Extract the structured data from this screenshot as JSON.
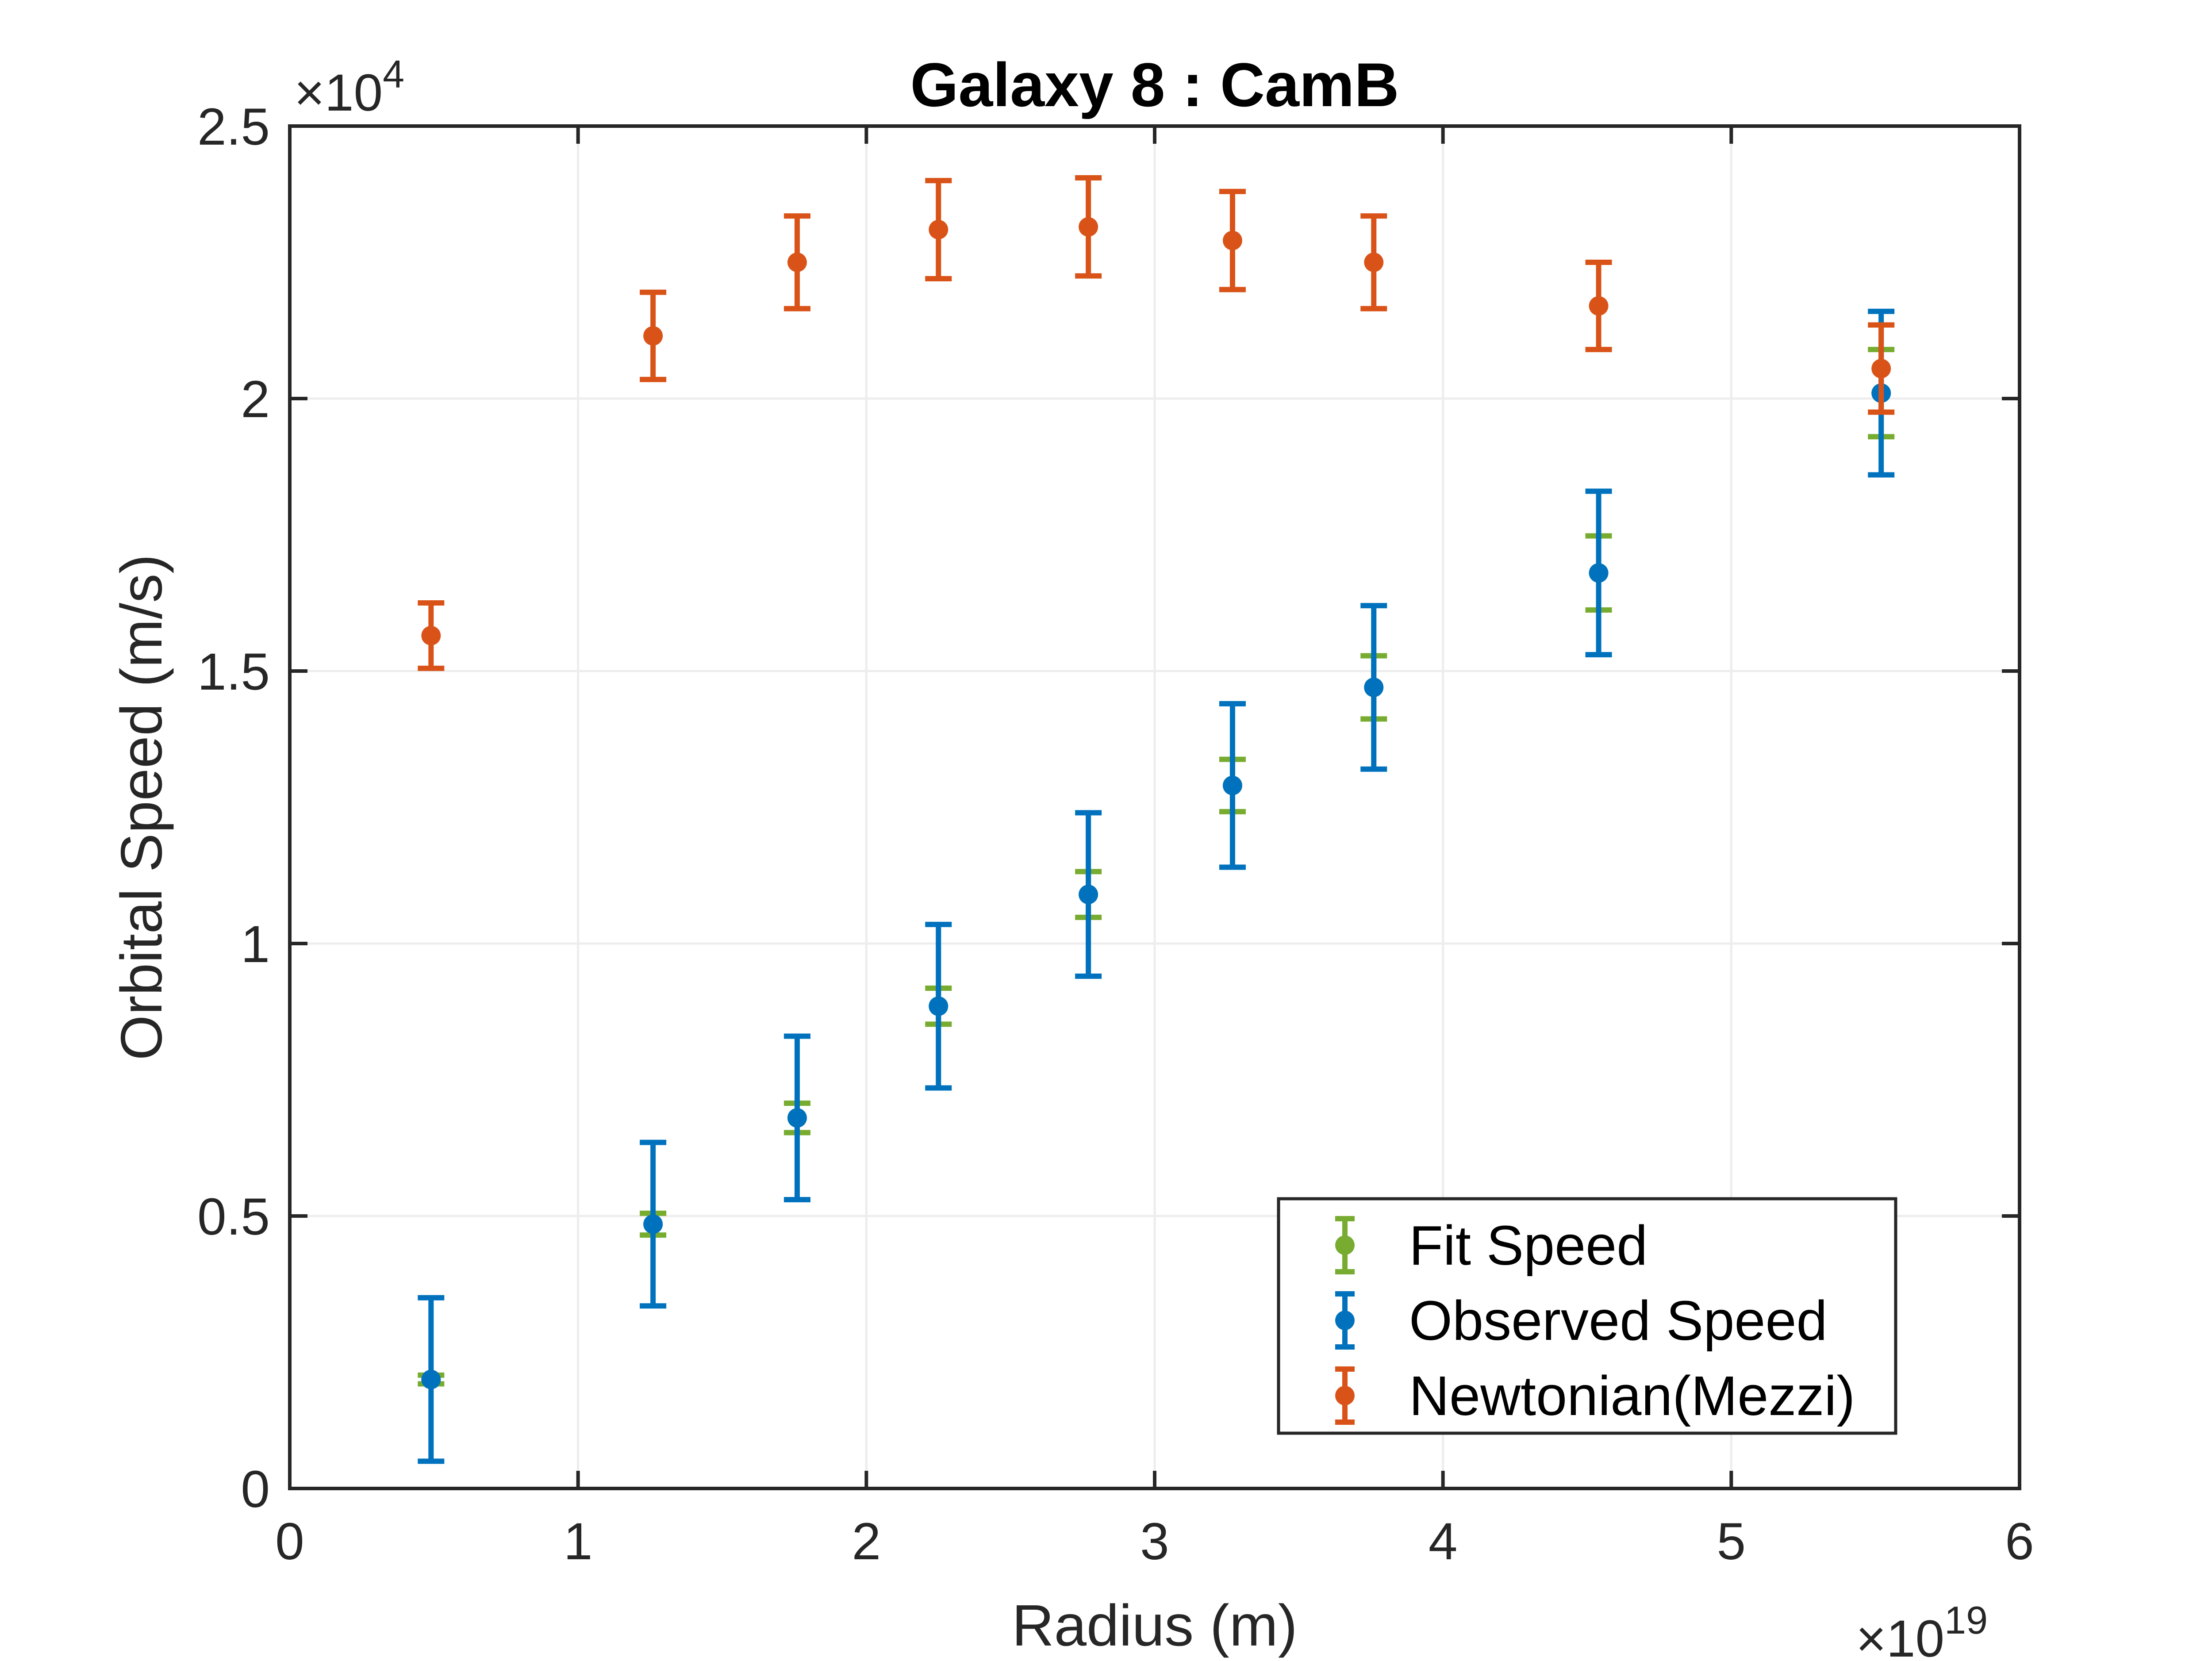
{
  "chart_data": {
    "type": "scatter",
    "title": "Galaxy 8 : CamB",
    "xlabel": "Radius (m)",
    "ylabel": "Orbital Speed (m/s)",
    "x_multiplier": {
      "base": "×10",
      "exponent": "19"
    },
    "y_multiplier": {
      "base": "×10",
      "exponent": "4"
    },
    "xlim": [
      0,
      6e+19
    ],
    "ylim": [
      0,
      25000
    ],
    "xticks": [
      0,
      1e+19,
      2e+19,
      3e+19,
      4e+19,
      5e+19,
      6e+19
    ],
    "xtick_labels": [
      "0",
      "1",
      "2",
      "3",
      "4",
      "5",
      "6"
    ],
    "yticks": [
      0,
      5000,
      10000,
      15000,
      20000,
      25000
    ],
    "ytick_labels": [
      "0",
      "0.5",
      "1",
      "1.5",
      "2",
      "2.5"
    ],
    "grid": true,
    "legend_position": "bottom-right",
    "series": [
      {
        "name": "Fit Speed",
        "color": "#77ac30",
        "x": [
          4.9e+18,
          1.26e+19,
          1.76e+19,
          2.25e+19,
          2.77e+19,
          3.27e+19,
          3.76e+19,
          4.54e+19,
          5.52e+19
        ],
        "y": [
          2000,
          4850,
          6800,
          8850,
          10900,
          12900,
          14700,
          16800,
          20100
        ],
        "err": [
          80,
          200,
          270,
          330,
          420,
          480,
          580,
          680,
          800
        ]
      },
      {
        "name": "Observed Speed",
        "color": "#0072bd",
        "x": [
          4.9e+18,
          1.26e+19,
          1.76e+19,
          2.25e+19,
          2.77e+19,
          3.27e+19,
          3.76e+19,
          4.54e+19,
          5.52e+19
        ],
        "y": [
          2000,
          4850,
          6800,
          8850,
          10900,
          12900,
          14700,
          16800,
          20100
        ],
        "err": [
          1500,
          1500,
          1500,
          1500,
          1500,
          1500,
          1500,
          1500,
          1500
        ]
      },
      {
        "name": "Newtonian(Mezzi)",
        "color": "#d95319",
        "x": [
          4.9e+18,
          1.26e+19,
          1.76e+19,
          2.25e+19,
          2.77e+19,
          3.27e+19,
          3.76e+19,
          4.54e+19,
          5.52e+19
        ],
        "y": [
          15650,
          21150,
          22500,
          23100,
          23150,
          22900,
          22500,
          21700,
          20550
        ],
        "err": [
          600,
          800,
          850,
          900,
          900,
          900,
          850,
          800,
          800
        ]
      }
    ]
  }
}
